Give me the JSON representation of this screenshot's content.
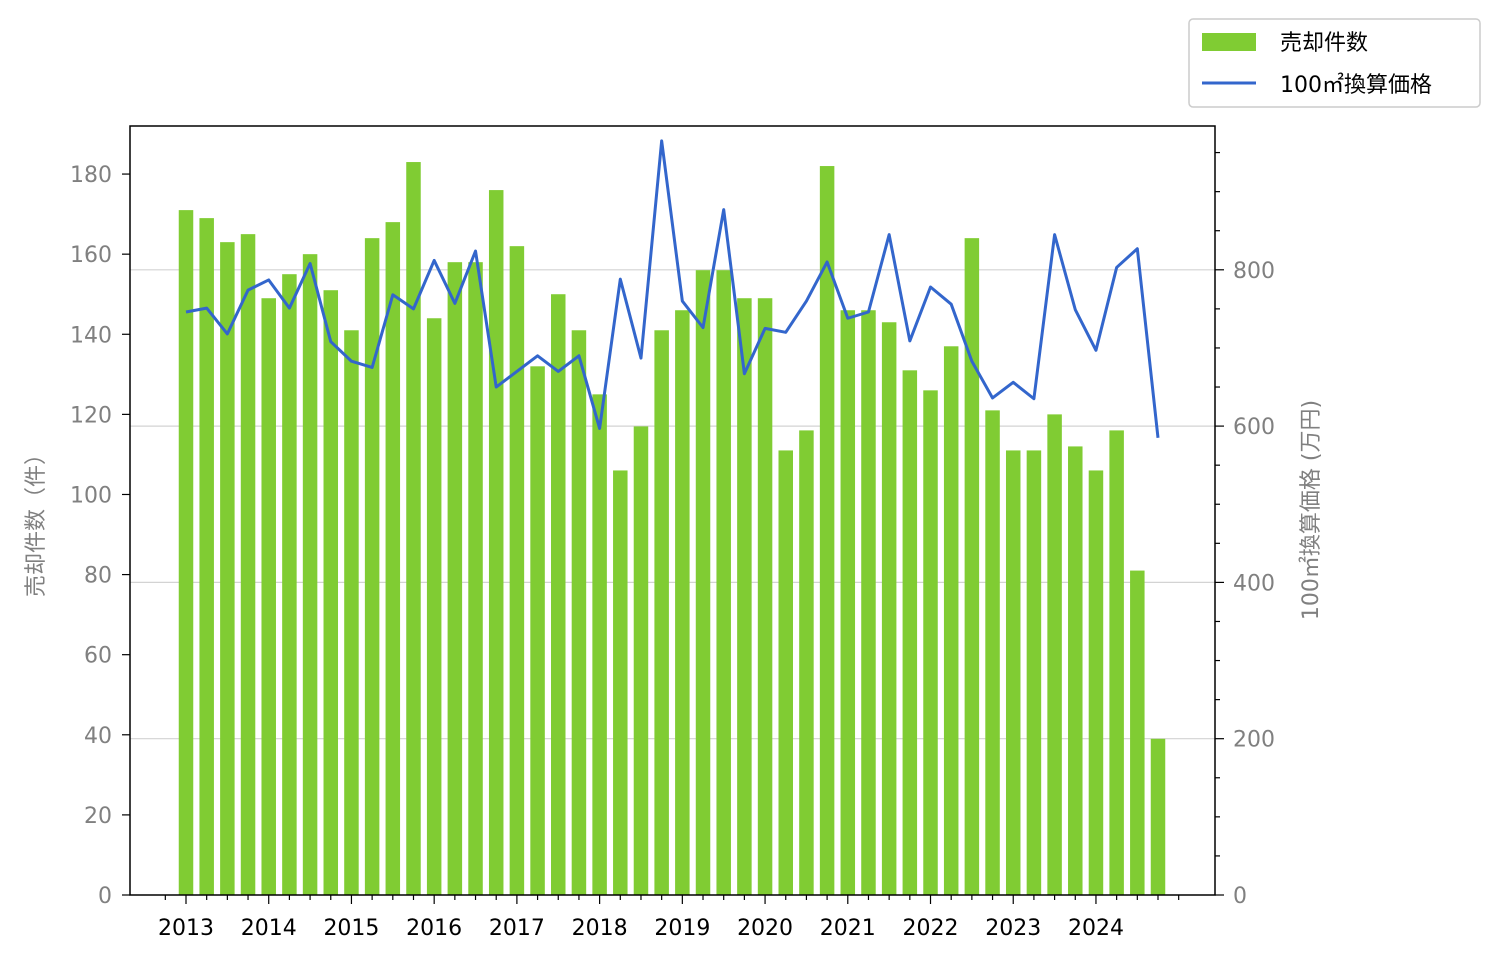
{
  "chart_data": {
    "type": "bar",
    "x_tick_labels": [
      "2013",
      "2014",
      "2015",
      "2016",
      "2017",
      "2018",
      "2019",
      "2020",
      "2021",
      "2022",
      "2023",
      "2024"
    ],
    "series": [
      {
        "name": "売却件数",
        "type": "bar",
        "axis": "left",
        "color": "#80cc33",
        "values": [
          171,
          169,
          163,
          165,
          149,
          155,
          160,
          151,
          141,
          164,
          168,
          183,
          144,
          158,
          158,
          176,
          162,
          132,
          150,
          141,
          125,
          106,
          117,
          141,
          146,
          156,
          156,
          149,
          149,
          111,
          116,
          182,
          146,
          146,
          143,
          131,
          126,
          137,
          164,
          121,
          111,
          111,
          120,
          112,
          106,
          116,
          81,
          39
        ]
      },
      {
        "name": "100㎡換算価格",
        "type": "line",
        "axis": "right",
        "color": "#3366cc",
        "values": [
          746,
          751,
          718,
          774,
          787,
          751,
          808,
          708,
          683,
          675,
          768,
          750,
          812,
          757,
          824,
          650,
          670,
          690,
          670,
          690,
          597,
          788,
          687,
          965,
          760,
          726,
          877,
          667,
          725,
          720,
          760,
          810,
          738,
          746,
          845,
          709,
          778,
          756,
          683,
          636,
          656,
          635,
          845,
          749,
          697,
          803,
          827,
          585
        ]
      }
    ],
    "y_left": {
      "label": "売却件数（件）",
      "ylim": [
        0,
        192
      ],
      "ticks": [
        0,
        20,
        40,
        60,
        80,
        100,
        120,
        140,
        160,
        180
      ]
    },
    "y_right": {
      "label": "100㎡換算価格 (万円)",
      "ylim": [
        0,
        984
      ],
      "ticks": [
        0,
        200,
        400,
        600,
        800
      ]
    },
    "grid": "horizontal, right axis major ticks",
    "legend": {
      "placement": "top-right, outside plot",
      "entries": [
        "売却件数",
        "100㎡換算価格"
      ]
    }
  }
}
